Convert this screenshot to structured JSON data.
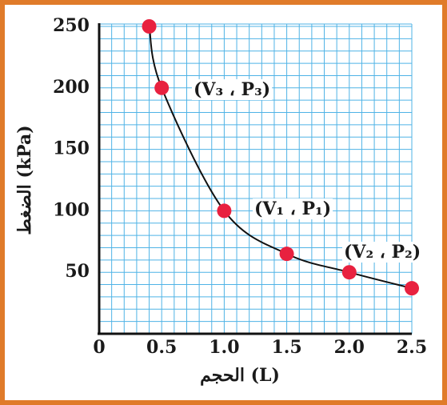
{
  "chart_data": {
    "type": "scatter",
    "x_label": "الحجم (L)",
    "y_label": "الضغط (kPa)",
    "xlim": [
      0,
      2.5
    ],
    "xticks": [
      0,
      0.5,
      {
        "value": 1,
        "label": "1.0"
      },
      1.5,
      {
        "value": 2,
        "label": "2.0"
      },
      2.5
    ],
    "ylim": [
      0,
      250
    ],
    "yticks": [
      50,
      100,
      150,
      200,
      250
    ],
    "grid": true,
    "series": [
      {
        "color": "#e8213f",
        "x": [
          0.4,
          0.5,
          1.0,
          1.5,
          2.0,
          2.5
        ],
        "values": [
          250,
          200,
          100,
          65,
          50,
          37
        ]
      }
    ],
    "annotations": [
      "(V₃ ، P₃)",
      "(V₁ ، P₁)",
      "(V₂ ، P₂)"
    ]
  }
}
